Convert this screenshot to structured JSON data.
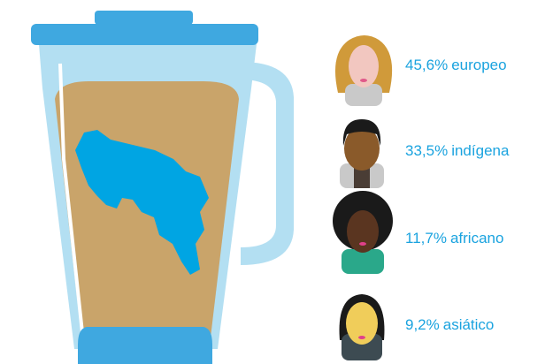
{
  "chart_data": {
    "type": "infographic",
    "categories": [
      "europeo",
      "indígena",
      "africano",
      "asiático"
    ],
    "values": [
      45.6,
      33.5,
      11.7,
      9.2
    ],
    "value_labels": [
      "45,6%",
      "33,5%",
      "11,7%",
      "9,2%"
    ],
    "color": "#1aa3df"
  }
}
